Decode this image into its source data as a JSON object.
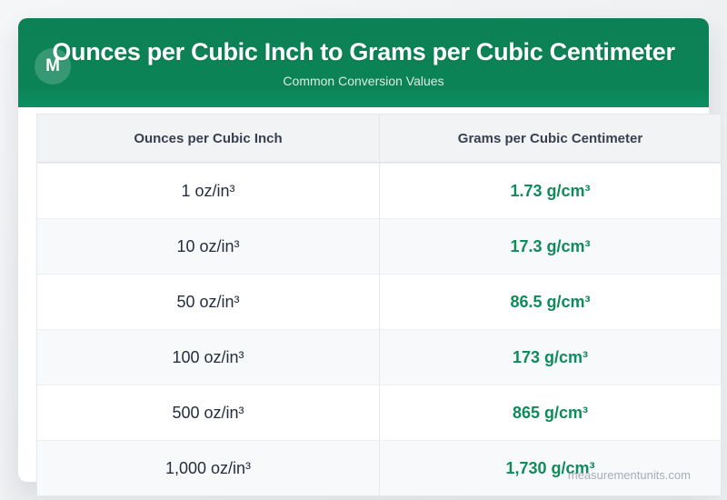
{
  "header": {
    "logo_letter": "M",
    "title": "Ounces per Cubic Inch to Grams per Cubic Centimeter",
    "subtitle": "Common Conversion Values"
  },
  "watermark": "measurementunits.com",
  "chart_data": {
    "type": "table",
    "title": "Ounces per Cubic Inch to Grams per Cubic Centimeter",
    "subtitle": "Common Conversion Values",
    "columns": [
      "Ounces per Cubic Inch",
      "Grams per Cubic Centimeter"
    ],
    "rows": [
      [
        "1 oz/in³",
        "1.73 g/cm³"
      ],
      [
        "10 oz/in³",
        "17.3 g/cm³"
      ],
      [
        "50 oz/in³",
        "86.5 g/cm³"
      ],
      [
        "100 oz/in³",
        "173 g/cm³"
      ],
      [
        "500 oz/in³",
        "865 g/cm³"
      ],
      [
        "1,000 oz/in³",
        "1,730 g/cm³"
      ]
    ],
    "values_numeric": {
      "oz_per_in3": [
        1,
        10,
        50,
        100,
        500,
        1000
      ],
      "g_per_cm3": [
        1.73,
        17.3,
        86.5,
        173,
        865,
        1730
      ]
    },
    "layout": {
      "header_row_background": "#f2f3f5",
      "alternate_row_background": "#f8f9fb",
      "grid": "horizontal and single vertical divider"
    },
    "colors": {
      "hero_green": "#0d8156",
      "value_green": "#0f8b5c",
      "page_background": "#eef0f2",
      "header_text": "#384050",
      "body_text": "#262e3d",
      "watermark_gray": "#a7adb7"
    }
  }
}
